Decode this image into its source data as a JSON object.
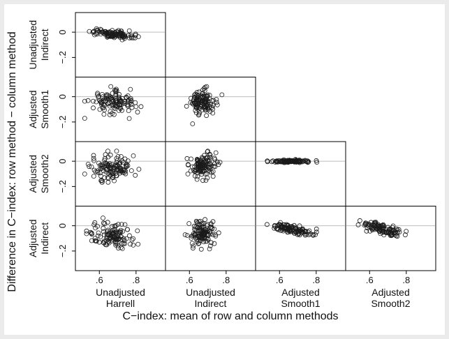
{
  "chart_data": {
    "type": "scatter",
    "title": "",
    "xlabel": "C−index: mean of row and column methods",
    "ylabel": "Difference in C−index: row method − column method",
    "x_ticks": [
      ".6",
      ".8"
    ],
    "x_tick_values": [
      0.6,
      0.8
    ],
    "y_ticks": [
      "0",
      "−.2"
    ],
    "y_tick_values": [
      0,
      -0.2
    ],
    "x_range": [
      0.5,
      0.93
    ],
    "y_range": [
      -0.3,
      0.1
    ],
    "reference_line_y": 0,
    "columns": [
      {
        "name": "Unadjusted Harrell",
        "label_lines": [
          "Unadjusted",
          "Harrell"
        ]
      },
      {
        "name": "Unadjusted Indirect",
        "label_lines": [
          "Unadjusted",
          "Indirect"
        ]
      },
      {
        "name": "Adjusted Smooth1",
        "label_lines": [
          "Adjusted",
          "Smooth1"
        ]
      },
      {
        "name": "Adjusted Smooth2",
        "label_lines": [
          "Adjusted",
          "Smooth2"
        ]
      }
    ],
    "rows": [
      {
        "name": "Unadjusted Indirect",
        "label_lines": [
          "Unadjusted",
          "Indirect"
        ]
      },
      {
        "name": "Adjusted Smooth1",
        "label_lines": [
          "Adjusted",
          "Smooth1"
        ]
      },
      {
        "name": "Adjusted Smooth2",
        "label_lines": [
          "Adjusted",
          "Smooth2"
        ]
      },
      {
        "name": "Adjusted Indirect",
        "label_lines": [
          "Adjusted",
          "Indirect"
        ]
      }
    ],
    "panels": [
      {
        "row": 0,
        "col": 0,
        "x_center": 0.67,
        "x_sd": 0.055,
        "y_center": -0.015,
        "y_sd": 0.015,
        "slope": -0.15,
        "x_min": 0.52,
        "x_max": 0.84,
        "n": 110
      },
      {
        "row": 1,
        "col": 0,
        "x_center": 0.67,
        "x_sd": 0.06,
        "y_center": -0.05,
        "y_sd": 0.045,
        "slope": 0,
        "x_min": 0.52,
        "x_max": 0.84,
        "n": 120
      },
      {
        "row": 1,
        "col": 1,
        "x_center": 0.67,
        "x_sd": 0.035,
        "y_center": -0.04,
        "y_sd": 0.05,
        "slope": 0,
        "x_min": 0.56,
        "x_max": 0.8,
        "n": 120
      },
      {
        "row": 2,
        "col": 0,
        "x_center": 0.67,
        "x_sd": 0.06,
        "y_center": -0.05,
        "y_sd": 0.05,
        "slope": 0,
        "x_min": 0.52,
        "x_max": 0.84,
        "n": 120
      },
      {
        "row": 2,
        "col": 1,
        "x_center": 0.67,
        "x_sd": 0.035,
        "y_center": -0.04,
        "y_sd": 0.05,
        "slope": 0,
        "x_min": 0.56,
        "x_max": 0.8,
        "n": 120
      },
      {
        "row": 2,
        "col": 2,
        "x_center": 0.67,
        "x_sd": 0.06,
        "y_center": 0.0,
        "y_sd": 0.005,
        "slope": 0,
        "x_min": 0.52,
        "x_max": 0.84,
        "n": 110
      },
      {
        "row": 3,
        "col": 0,
        "x_center": 0.67,
        "x_sd": 0.06,
        "y_center": -0.08,
        "y_sd": 0.055,
        "slope": -0.2,
        "x_min": 0.53,
        "x_max": 0.82,
        "n": 120
      },
      {
        "row": 3,
        "col": 1,
        "x_center": 0.67,
        "x_sd": 0.035,
        "y_center": -0.06,
        "y_sd": 0.05,
        "slope": 0,
        "x_min": 0.56,
        "x_max": 0.78,
        "n": 120
      },
      {
        "row": 3,
        "col": 2,
        "x_center": 0.67,
        "x_sd": 0.055,
        "y_center": -0.03,
        "y_sd": 0.018,
        "slope": -0.3,
        "x_min": 0.52,
        "x_max": 0.84,
        "n": 110
      },
      {
        "row": 3,
        "col": 3,
        "x_center": 0.67,
        "x_sd": 0.055,
        "y_center": -0.03,
        "y_sd": 0.02,
        "slope": -0.4,
        "x_min": 0.52,
        "x_max": 0.84,
        "n": 110
      }
    ]
  }
}
